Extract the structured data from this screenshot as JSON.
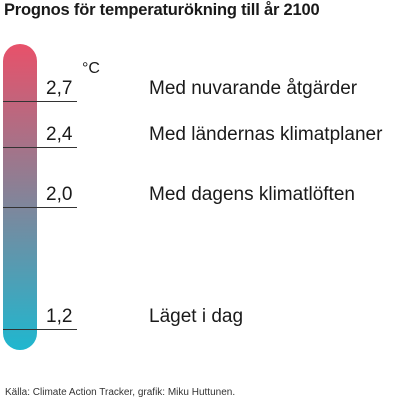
{
  "title": "Prognos för temperaturökning till år 2100",
  "unit": "°C",
  "source": "Källa:  Climate Action Tracker, grafik: Miku Huttunen.",
  "colors": {
    "thermometer_top": "#e8516a",
    "thermometer_bottom": "#1fb7cf"
  },
  "chart_data": {
    "type": "thermometer",
    "title": "Prognos för temperaturökning till år 2100",
    "ylabel": "°C",
    "points": [
      {
        "value": 2.7,
        "label": "2,7",
        "scenario": "Med nuvarande åtgärder"
      },
      {
        "value": 2.4,
        "label": "2,4",
        "scenario": "Med ländernas klimatplaner"
      },
      {
        "value": 2.0,
        "label": "2,0",
        "scenario": "Med dagens klimatlöften"
      },
      {
        "value": 1.2,
        "label": "1,2",
        "scenario": "Läget i dag"
      }
    ]
  }
}
